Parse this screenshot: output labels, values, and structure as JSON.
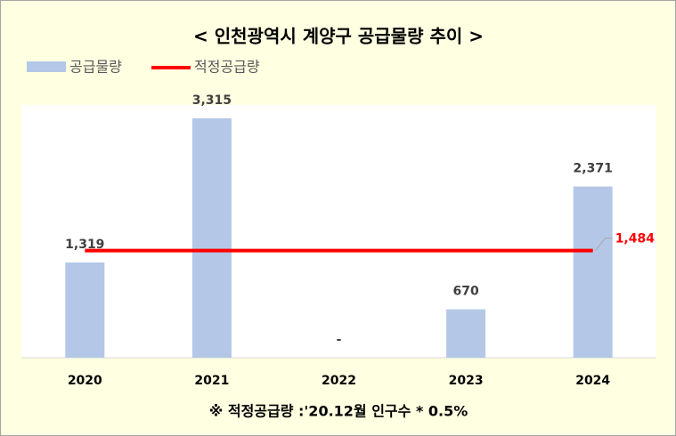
{
  "chart_data": {
    "type": "bar",
    "title": "< 인천광역시 계양구 공급물량 추이 >",
    "categories": [
      "2020",
      "2021",
      "2022",
      "2023",
      "2024"
    ],
    "series": [
      {
        "name": "공급물량",
        "color": "#b4c7e7",
        "values": [
          1319,
          3315,
          null,
          670,
          2371
        ],
        "value_labels": [
          "1,319",
          "3,315",
          "-",
          "670",
          "2,371"
        ]
      }
    ],
    "reference_line": {
      "name": "적정공급량",
      "value": 1484,
      "value_label": "1,484",
      "color": "#ff0000"
    },
    "ylim": [
      0,
      3500
    ],
    "footnote": "※ 적정공급량 :'20.12월 인구수 * 0.5%"
  }
}
